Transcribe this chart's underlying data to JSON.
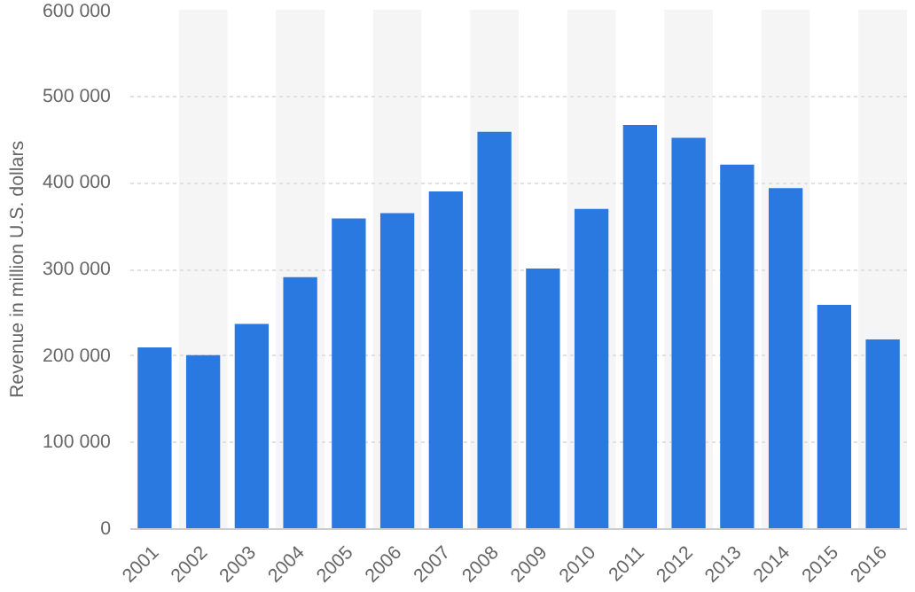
{
  "chart_data": {
    "type": "bar",
    "ylabel": "Revenue in million U.S. dollars",
    "categories": [
      "2001",
      "2002",
      "2003",
      "2004",
      "2005",
      "2006",
      "2007",
      "2008",
      "2009",
      "2010",
      "2011",
      "2012",
      "2013",
      "2014",
      "2015",
      "2016"
    ],
    "values": [
      210000,
      201000,
      237000,
      291000,
      359000,
      365000,
      390000,
      459000,
      301000,
      370000,
      467000,
      452000,
      421000,
      394000,
      259000,
      219000
    ],
    "color": "#2a79e0",
    "ylim": [
      0,
      600000
    ],
    "yticks": [
      0,
      {
        "value": 100000,
        "label": "100 000"
      },
      {
        "value": 200000,
        "label": "200 000"
      },
      {
        "value": 300000,
        "label": "300 000"
      },
      {
        "value": 400000,
        "label": "400 000"
      },
      {
        "value": 500000,
        "label": "500 000"
      },
      {
        "value": 600000,
        "label": "600 000"
      }
    ],
    "grid": "y",
    "bands": [
      {
        "axis": "x",
        "from": "2002",
        "to": "2002",
        "color": "#f5f5f5"
      },
      {
        "axis": "x",
        "from": "2004",
        "to": "2004",
        "color": "#f5f5f5"
      },
      {
        "axis": "x",
        "from": "2006",
        "to": "2006",
        "color": "#f5f5f5"
      },
      {
        "axis": "x",
        "from": "2008",
        "to": "2008",
        "color": "#f5f5f5"
      },
      {
        "axis": "x",
        "from": "2010",
        "to": "2010",
        "color": "#f5f5f5"
      },
      {
        "axis": "x",
        "from": "2012",
        "to": "2012",
        "color": "#f5f5f5"
      },
      {
        "axis": "x",
        "from": "2014",
        "to": "2014",
        "color": "#f5f5f5"
      },
      {
        "axis": "x",
        "from": "2016",
        "to": "2016",
        "color": "#f5f5f5"
      }
    ]
  }
}
